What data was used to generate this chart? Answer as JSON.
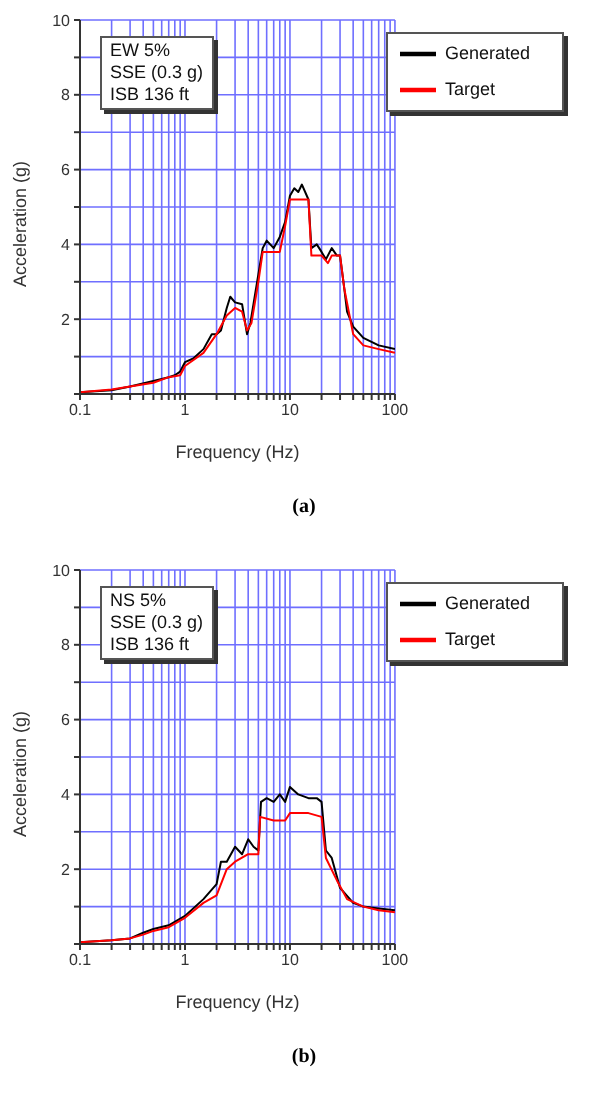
{
  "chart_data": [
    {
      "type": "line",
      "xlabel": "Frequency (Hz)",
      "ylabel": "Acceleration (g)",
      "log": "x",
      "grid": true,
      "legend": "top right",
      "marker": "none",
      "line_style": "solid",
      "xlim": [
        0.1,
        100
      ],
      "ylim": [
        0,
        10
      ],
      "xticks": [
        0.1,
        {
          "value": 0.2,
          "label": null
        },
        {
          "value": 0.3,
          "label": null
        },
        {
          "value": 0.4,
          "label": null
        },
        {
          "value": 0.5,
          "label": null
        },
        {
          "value": 0.6,
          "label": null
        },
        {
          "value": 0.7,
          "label": null
        },
        {
          "value": 0.8,
          "label": null
        },
        {
          "value": 0.9,
          "label": null
        },
        1,
        {
          "value": 2,
          "label": null
        },
        {
          "value": 3,
          "label": null
        },
        {
          "value": 4,
          "label": null
        },
        {
          "value": 5,
          "label": null
        },
        {
          "value": 6,
          "label": null
        },
        {
          "value": 7,
          "label": null
        },
        {
          "value": 8,
          "label": null
        },
        {
          "value": 9,
          "label": null
        },
        10,
        {
          "value": 20,
          "label": null
        },
        {
          "value": 30,
          "label": null
        },
        {
          "value": 40,
          "label": null
        },
        {
          "value": 50,
          "label": null
        },
        {
          "value": 60,
          "label": null
        },
        {
          "value": 70,
          "label": null
        },
        {
          "value": 80,
          "label": null
        },
        {
          "value": 90,
          "label": null
        },
        100
      ],
      "yticks": [
        {
          "value": 0,
          "label": null
        },
        {
          "value": 1,
          "label": null
        },
        2,
        {
          "value": 3,
          "label": null
        },
        4,
        {
          "value": 5,
          "label": null
        },
        6,
        {
          "value": 7,
          "label": null
        },
        8,
        {
          "value": 9,
          "label": null
        },
        10
      ],
      "annotations": [
        "EW 5%",
        "SSE (0.3 g)",
        "ISB 136 ft",
        "(a)"
      ],
      "series": [
        {
          "name": "Generated",
          "color": "#000000",
          "x": [
            0.1,
            0.2,
            0.3,
            0.5,
            0.7,
            0.8,
            0.9,
            1,
            1.2,
            1.5,
            1.8,
            2,
            2.2,
            2.5,
            2.7,
            3,
            3.5,
            3.9,
            4.2,
            5,
            5.5,
            6,
            7,
            8,
            9,
            10,
            11,
            12,
            13,
            15,
            16,
            18,
            20,
            22,
            25,
            28,
            30,
            33,
            35,
            40,
            50,
            70,
            100
          ],
          "values": [
            0.05,
            0.1,
            0.2,
            0.35,
            0.45,
            0.5,
            0.6,
            0.85,
            0.95,
            1.2,
            1.6,
            1.6,
            1.7,
            2.3,
            2.6,
            2.45,
            2.4,
            1.6,
            1.9,
            3.2,
            3.9,
            4.1,
            3.9,
            4.2,
            4.6,
            5.3,
            5.5,
            5.4,
            5.6,
            5.2,
            3.9,
            4,
            3.8,
            3.6,
            3.9,
            3.7,
            3.7,
            2.8,
            2.2,
            1.8,
            1.5,
            1.3,
            1.2
          ]
        },
        {
          "name": "Target",
          "color": "#ff0000",
          "x": [
            0.1,
            0.2,
            0.3,
            0.5,
            0.7,
            0.9,
            1,
            1.5,
            2,
            2.5,
            3,
            3.5,
            3.9,
            4.3,
            5,
            5.5,
            7,
            8,
            9,
            10,
            15,
            16,
            20,
            23,
            25,
            30,
            33,
            40,
            50,
            70,
            100
          ],
          "values": [
            0.05,
            0.12,
            0.2,
            0.3,
            0.45,
            0.5,
            0.75,
            1.1,
            1.6,
            2.1,
            2.3,
            2.2,
            1.7,
            1.9,
            3,
            3.8,
            3.8,
            3.8,
            4.5,
            5.2,
            5.2,
            3.7,
            3.7,
            3.5,
            3.7,
            3.7,
            2.8,
            1.6,
            1.3,
            1.2,
            1.1
          ]
        }
      ]
    },
    {
      "type": "line",
      "xlabel": "Frequency (Hz)",
      "ylabel": "Acceleration (g)",
      "log": "x",
      "grid": true,
      "legend": "top right",
      "marker": "none",
      "line_style": "solid",
      "xlim": [
        0.1,
        100
      ],
      "ylim": [
        0,
        10
      ],
      "xticks": [
        0.1,
        {
          "value": 0.2,
          "label": null
        },
        {
          "value": 0.3,
          "label": null
        },
        {
          "value": 0.4,
          "label": null
        },
        {
          "value": 0.5,
          "label": null
        },
        {
          "value": 0.6,
          "label": null
        },
        {
          "value": 0.7,
          "label": null
        },
        {
          "value": 0.8,
          "label": null
        },
        {
          "value": 0.9,
          "label": null
        },
        1,
        {
          "value": 2,
          "label": null
        },
        {
          "value": 3,
          "label": null
        },
        {
          "value": 4,
          "label": null
        },
        {
          "value": 5,
          "label": null
        },
        {
          "value": 6,
          "label": null
        },
        {
          "value": 7,
          "label": null
        },
        {
          "value": 8,
          "label": null
        },
        {
          "value": 9,
          "label": null
        },
        10,
        {
          "value": 20,
          "label": null
        },
        {
          "value": 30,
          "label": null
        },
        {
          "value": 40,
          "label": null
        },
        {
          "value": 50,
          "label": null
        },
        {
          "value": 60,
          "label": null
        },
        {
          "value": 70,
          "label": null
        },
        {
          "value": 80,
          "label": null
        },
        {
          "value": 90,
          "label": null
        },
        100
      ],
      "yticks": [
        {
          "value": 0,
          "label": null
        },
        {
          "value": 1,
          "label": null
        },
        2,
        {
          "value": 3,
          "label": null
        },
        4,
        {
          "value": 5,
          "label": null
        },
        6,
        {
          "value": 7,
          "label": null
        },
        8,
        {
          "value": 9,
          "label": null
        },
        10
      ],
      "annotations": [
        "NS 5%",
        "SSE (0.3 g)",
        "ISB 136 ft",
        "(b)"
      ],
      "series": [
        {
          "name": "Generated",
          "color": "#000000",
          "x": [
            0.1,
            0.2,
            0.3,
            0.4,
            0.5,
            0.7,
            1,
            1.5,
            2,
            2.2,
            2.5,
            3,
            3.5,
            4,
            4.5,
            5,
            5.3,
            6,
            7,
            8,
            9,
            10,
            12,
            15,
            18,
            20,
            22,
            25,
            30,
            40,
            50,
            70,
            100
          ],
          "values": [
            0.05,
            0.1,
            0.15,
            0.3,
            0.4,
            0.5,
            0.75,
            1.2,
            1.6,
            2.2,
            2.2,
            2.6,
            2.4,
            2.8,
            2.6,
            2.5,
            3.8,
            3.9,
            3.8,
            4,
            3.8,
            4.2,
            4,
            3.9,
            3.9,
            3.8,
            2.5,
            2.3,
            1.5,
            1.1,
            1,
            0.95,
            0.9
          ]
        },
        {
          "name": "Target",
          "color": "#ff0000",
          "x": [
            0.1,
            0.2,
            0.3,
            0.4,
            0.5,
            0.7,
            1,
            1.5,
            2,
            2.5,
            3,
            4,
            5,
            5.2,
            7,
            9,
            10,
            15,
            20,
            22,
            28,
            35,
            50,
            70,
            100
          ],
          "values": [
            0.05,
            0.1,
            0.15,
            0.25,
            0.35,
            0.45,
            0.7,
            1.1,
            1.3,
            2,
            2.2,
            2.4,
            2.4,
            3.4,
            3.3,
            3.3,
            3.5,
            3.5,
            3.4,
            2.3,
            1.7,
            1.2,
            1,
            0.9,
            0.85
          ]
        }
      ]
    }
  ]
}
